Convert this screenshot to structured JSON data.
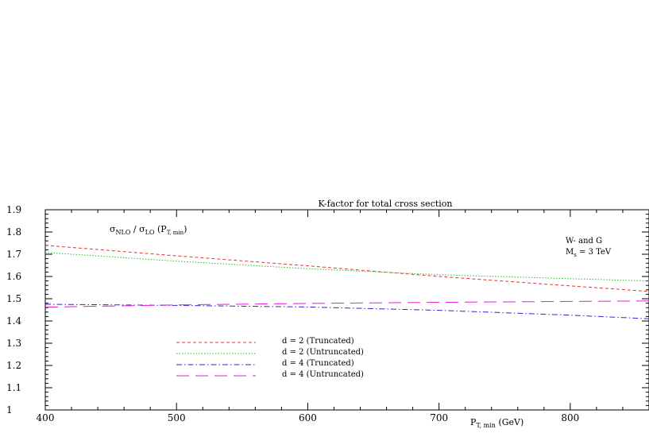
{
  "chart_data": {
    "type": "line",
    "title": "K-factor for total cross section",
    "ylabel_main": "σ",
    "ylabel_parts": {
      "s1": "NLO",
      "mid": " / ",
      "s2": "σ",
      "s3": "LO",
      "paren": " (P",
      "s4": "T, min",
      "close": ")"
    },
    "xlabel_parts": {
      "p": "P",
      "sub": "T, min",
      "unit": " (GeV)"
    },
    "annotation": {
      "line1": "W- and G",
      "line2_m": "M",
      "line2_sub": "s",
      "line2_rest": " = 3 TeV"
    },
    "xlim": [
      400,
      860
    ],
    "ylim": [
      1.0,
      1.9
    ],
    "x_ticks": [
      400,
      500,
      600,
      700,
      800
    ],
    "y_ticks": [
      1,
      1.1,
      1.2,
      1.3,
      1.4,
      1.5,
      1.6,
      1.7,
      1.8,
      1.9
    ],
    "y_tick_labels": [
      "1",
      "1.1",
      "1.2",
      "1.3",
      "1.4",
      "1.5",
      "1.6",
      "1.7",
      "1.8",
      "1.9"
    ],
    "legend_position": "lower-left",
    "grid": false,
    "series": [
      {
        "name": "d = 2 (Truncated)",
        "color": "#e8312f",
        "dash": "4,3",
        "x": [
          400,
          500,
          600,
          700,
          800,
          860
        ],
        "y": [
          1.74,
          1.693,
          1.648,
          1.6,
          1.558,
          1.533
        ]
      },
      {
        "name": "d = 2 (Untruncated)",
        "color": "#26c226",
        "dash": "1.5,2",
        "x": [
          400,
          500,
          600,
          700,
          800,
          860
        ],
        "y": [
          1.708,
          1.669,
          1.635,
          1.608,
          1.59,
          1.58
        ]
      },
      {
        "name": "d = 4 (Truncated)",
        "color": "#2a2ad4",
        "dash": "7,3,1.5,3",
        "x": [
          400,
          500,
          600,
          700,
          800,
          860
        ],
        "y": [
          1.475,
          1.47,
          1.463,
          1.448,
          1.426,
          1.41
        ]
      },
      {
        "name": "d = 4 (Untruncated)",
        "color": "#e01ee0",
        "dash": "16,8",
        "x": [
          400,
          500,
          600,
          700,
          800,
          860
        ],
        "y": [
          1.462,
          1.472,
          1.479,
          1.484,
          1.488,
          1.49
        ]
      }
    ]
  }
}
